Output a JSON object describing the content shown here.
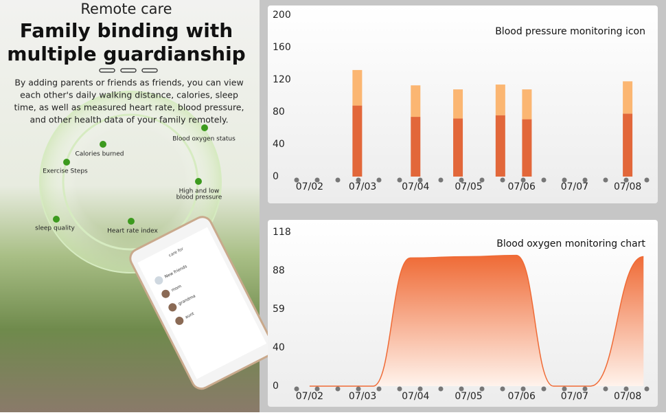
{
  "panel": {
    "kicker": "Remote care",
    "headline": [
      "Family binding with",
      "multiple guardianship"
    ],
    "body": [
      "By adding parents or friends as friends, you can view",
      "each other's daily walking distance, calories, sleep",
      "time, as well as measured heart rate, blood pressure,",
      "and other health data of your family remotely."
    ],
    "features": [
      {
        "label": [
          "Blood oxygen status"
        ]
      },
      {
        "label": [
          "Calories burned"
        ]
      },
      {
        "label": [
          "Exercise Steps"
        ]
      },
      {
        "label": [
          "High and low",
          "blood pressure"
        ]
      },
      {
        "label": [
          "sleep quality"
        ]
      },
      {
        "label": [
          "Heart rate index"
        ]
      }
    ],
    "phone": {
      "title": "care for",
      "items": [
        "New friends",
        "mom",
        "grandma",
        "aunt"
      ]
    }
  },
  "chart_data": [
    {
      "type": "bar",
      "title": "Blood pressure monitoring icon",
      "stacked": true,
      "x": [
        2.9,
        4.0,
        4.8,
        5.6,
        6.1,
        8.0
      ],
      "series": [
        {
          "color": "#e2673a",
          "values": [
            88,
            74,
            72,
            76,
            71,
            78
          ]
        },
        {
          "color": "#fbb672",
          "values": [
            44,
            39,
            36,
            38,
            37,
            40
          ]
        }
      ],
      "xlim": [
        1.6,
        8.4
      ],
      "xticks": [
        {
          "value": 2,
          "label": "07/02"
        },
        {
          "value": 3,
          "label": "07/03"
        },
        {
          "value": 4,
          "label": "07/04"
        },
        {
          "value": 5,
          "label": "07/05"
        },
        {
          "value": 6,
          "label": "07/06"
        },
        {
          "value": 7,
          "label": "07/07"
        },
        {
          "value": 8,
          "label": "07/08"
        }
      ],
      "ylim": [
        0,
        200
      ],
      "yticks": [
        0,
        40,
        80,
        120,
        160,
        200
      ]
    },
    {
      "type": "area",
      "title": "Blood oxygen monitoring chart",
      "x": [
        2,
        3.2,
        3.9,
        5,
        5.9,
        6.6,
        7.3,
        8.3
      ],
      "series": [
        {
          "color": "#ef6a35",
          "values": [
            0,
            0,
            98,
            99,
            100,
            0,
            0,
            99
          ]
        }
      ],
      "xlim": [
        1.6,
        8.4
      ],
      "xticks": [
        {
          "value": 2,
          "label": "07/02"
        },
        {
          "value": 3,
          "label": "07/03"
        },
        {
          "value": 4,
          "label": "07/04"
        },
        {
          "value": 5,
          "label": "07/05"
        },
        {
          "value": 6,
          "label": "07/06"
        },
        {
          "value": 7,
          "label": "07/07"
        },
        {
          "value": 8,
          "label": "07/08"
        }
      ],
      "ylim": [
        0,
        118
      ],
      "yticks": [
        0,
        40,
        59,
        88,
        118
      ]
    }
  ]
}
